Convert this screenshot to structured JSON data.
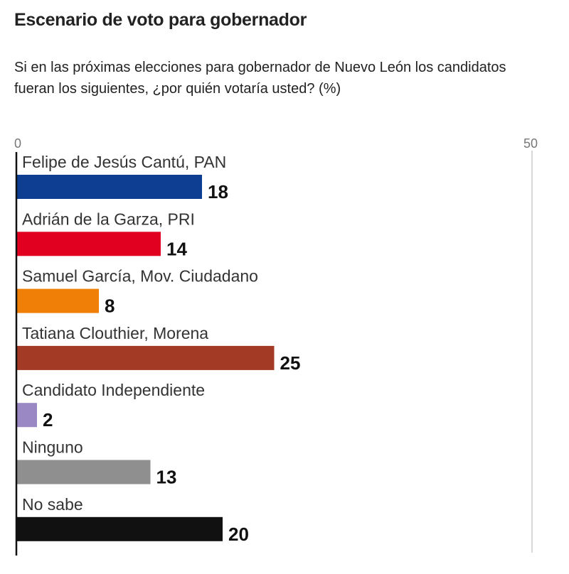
{
  "chart_data": {
    "type": "bar",
    "orientation": "horizontal",
    "title": "Escenario de voto para gobernador",
    "subtitle": "Si en las próximas elecciones para gobernador de Nuevo León los candidatos fueran los siguientes, ¿por quién votaría usted? (%)",
    "xlim": [
      0,
      50
    ],
    "ticks": [
      "0",
      "50"
    ],
    "categories": [
      "Felipe de Jesús Cantú, PAN",
      "Adrián de la Garza, PRI",
      "Samuel García, Mov. Ciudadano",
      "Tatiana Clouthier, Morena",
      "Candidato Independiente",
      "Ninguno",
      "No sabe"
    ],
    "values": [
      18,
      14,
      8,
      25,
      2,
      13,
      20
    ],
    "colors": [
      "#0d3e91",
      "#e1001f",
      "#ef7f06",
      "#a33a25",
      "#9a88c4",
      "#8f8f8f",
      "#111111"
    ]
  }
}
